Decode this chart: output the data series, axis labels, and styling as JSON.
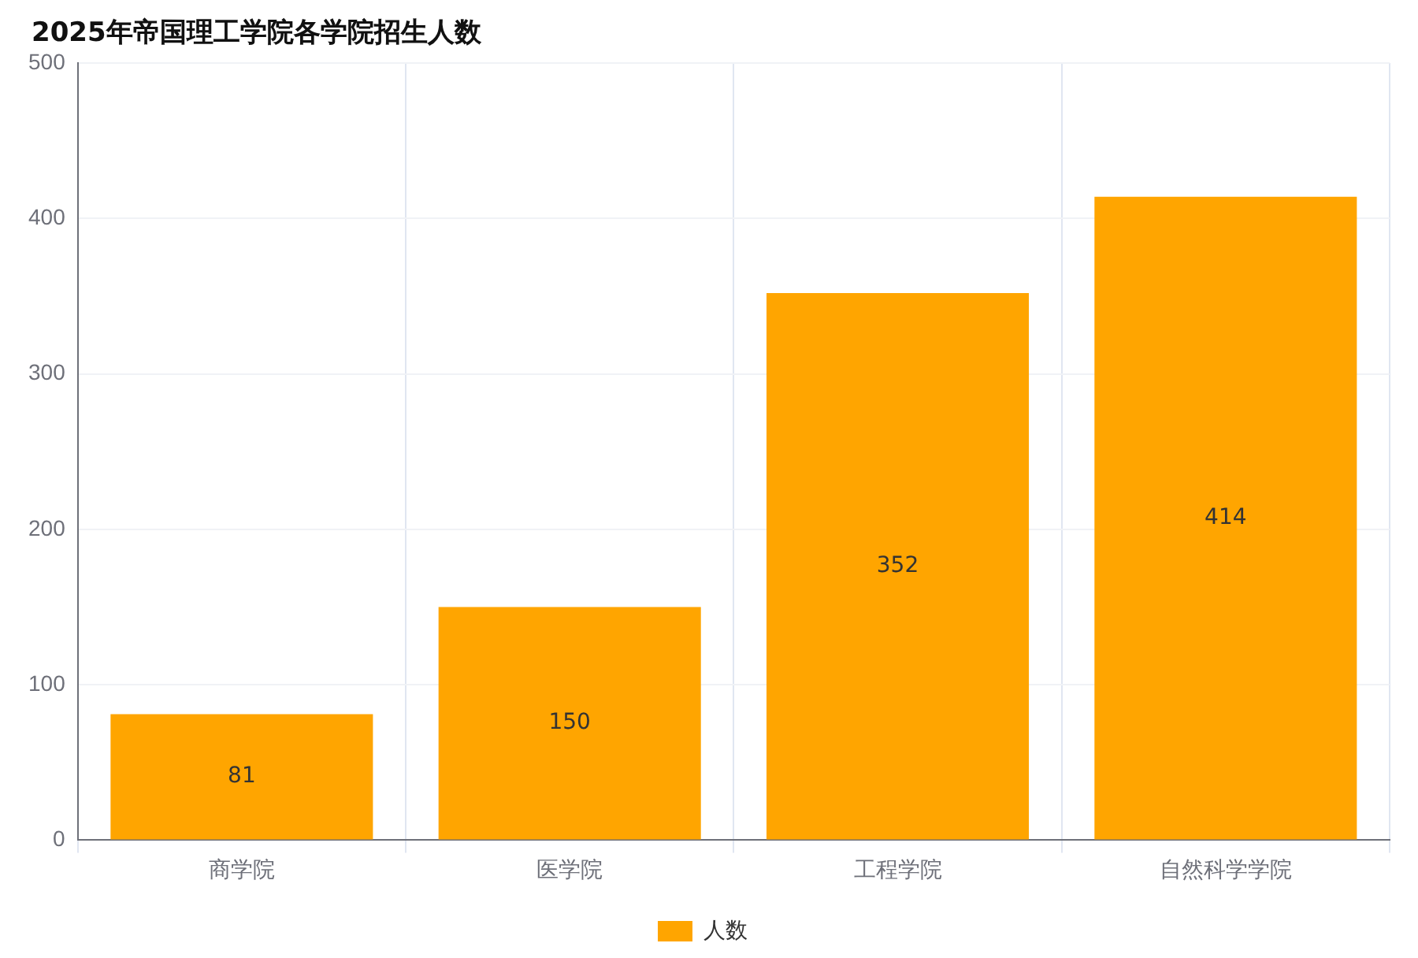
{
  "chart_data": {
    "type": "bar",
    "title": "2025年帝国理工学院各学院招生人数",
    "categories": [
      "商学院",
      "医学院",
      "工程学院",
      "自然科学学院"
    ],
    "series": [
      {
        "name": "人数",
        "color": "#ffa500",
        "values": [
          81,
          150,
          352,
          414
        ]
      }
    ],
    "ylim": [
      0,
      500
    ],
    "yticks": [
      0,
      100,
      200,
      300,
      400,
      500
    ],
    "grid": true,
    "legend": "bottom",
    "data_labels": true
  }
}
